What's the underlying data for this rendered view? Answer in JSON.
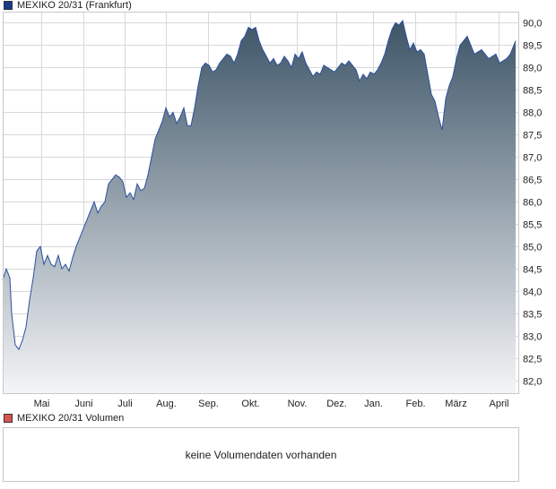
{
  "legend": {
    "price": "MEXIKO 20/31 (Frankfurt)",
    "price_color": "#1a3a8a",
    "volume": "MEXIKO 20/31 Volumen",
    "volume_color": "#d9534f"
  },
  "volume": {
    "message": "keine Volumendaten vorhanden"
  },
  "colors": {
    "line": "#2a4fa0",
    "fill_top": "#3d5567",
    "fill_bottom": "#f4f5f7",
    "grid": "#d8d8d8",
    "axis_text": "#222222"
  },
  "chart_data": {
    "type": "area",
    "series": [
      {
        "name": "MEXIKO 20/31 (Frankfurt)",
        "x": [
          0,
          4,
          8,
          10,
          14,
          18,
          22,
          26,
          30,
          34,
          38,
          42,
          46,
          50,
          54,
          58,
          62,
          66,
          70,
          74,
          78,
          82,
          86,
          90,
          94,
          98,
          102,
          106,
          110,
          114,
          118,
          122,
          126,
          130,
          134,
          138,
          142,
          146,
          150,
          154,
          158,
          162,
          166,
          170,
          174,
          178,
          182,
          186,
          190,
          194,
          198,
          202,
          206,
          210,
          214,
          218,
          222,
          226,
          230,
          234,
          238,
          242,
          246,
          250,
          254,
          258,
          262,
          266,
          270,
          274,
          278,
          282,
          286,
          290,
          294,
          298,
          302,
          306,
          310,
          314,
          318,
          322,
          326,
          330,
          334,
          338,
          342,
          346,
          350,
          354,
          358,
          362,
          366,
          370,
          374,
          378,
          382,
          386,
          390,
          394,
          398,
          402,
          406,
          410,
          414,
          418,
          422,
          426,
          430,
          434,
          438,
          442,
          446,
          450,
          454,
          458,
          462,
          466,
          470,
          474,
          478,
          482,
          486,
          490,
          494,
          498,
          502,
          506,
          510,
          514,
          518,
          522,
          526,
          530,
          534,
          538,
          542,
          546,
          550,
          554,
          558,
          562,
          566,
          570,
          572
        ],
        "values": [
          84.25,
          84.5,
          84.3,
          83.5,
          82.8,
          82.7,
          82.9,
          83.2,
          83.8,
          84.3,
          84.9,
          85.0,
          84.6,
          84.8,
          84.6,
          84.55,
          84.8,
          84.5,
          84.6,
          84.45,
          84.75,
          85.0,
          85.2,
          85.4,
          85.6,
          85.8,
          86.0,
          85.75,
          85.9,
          86.0,
          86.4,
          86.5,
          86.6,
          86.55,
          86.45,
          86.1,
          86.2,
          86.05,
          86.4,
          86.25,
          86.3,
          86.6,
          87.0,
          87.4,
          87.6,
          87.8,
          88.1,
          87.9,
          88.0,
          87.75,
          87.9,
          88.1,
          87.7,
          87.7,
          88.1,
          88.6,
          89.0,
          89.1,
          89.05,
          88.9,
          88.95,
          89.1,
          89.2,
          89.3,
          89.25,
          89.1,
          89.3,
          89.6,
          89.7,
          89.9,
          89.85,
          89.9,
          89.6,
          89.4,
          89.25,
          89.1,
          89.2,
          89.05,
          89.1,
          89.25,
          89.15,
          89.0,
          89.3,
          89.2,
          89.35,
          89.1,
          88.95,
          88.8,
          88.9,
          88.85,
          89.05,
          89.0,
          88.95,
          88.9,
          89.0,
          89.1,
          89.05,
          89.15,
          89.05,
          88.95,
          88.7,
          88.85,
          88.75,
          88.9,
          88.85,
          88.95,
          89.1,
          89.3,
          89.6,
          89.85,
          90.0,
          89.95,
          90.05,
          89.7,
          89.4,
          89.55,
          89.35,
          89.4,
          89.3,
          88.85,
          88.4,
          88.25,
          87.9,
          87.6,
          88.3,
          88.6,
          88.8,
          89.2,
          89.5,
          89.6,
          89.7,
          89.5,
          89.3,
          89.35,
          89.4,
          89.3,
          89.2,
          89.25,
          89.3,
          89.1,
          89.15,
          89.2,
          89.3,
          89.5,
          89.6
        ]
      }
    ],
    "x_ticks": [
      {
        "label": "Mai",
        "pos": 43
      },
      {
        "label": "Juni",
        "pos": 90
      },
      {
        "label": "Juli",
        "pos": 136
      },
      {
        "label": "Aug.",
        "pos": 182
      },
      {
        "label": "Sep.",
        "pos": 229
      },
      {
        "label": "Okt.",
        "pos": 276
      },
      {
        "label": "Nov.",
        "pos": 328
      },
      {
        "label": "Dez.",
        "pos": 372
      },
      {
        "label": "Jan.",
        "pos": 413
      },
      {
        "label": "Feb.",
        "pos": 460
      },
      {
        "label": "März",
        "pos": 505
      },
      {
        "label": "April",
        "pos": 553
      }
    ],
    "y_ticks": [
      "82,0",
      "82,5",
      "83,0",
      "83,5",
      "84,0",
      "84,5",
      "85,0",
      "85,5",
      "86,0",
      "86,5",
      "87,0",
      "87,5",
      "88,0",
      "88,5",
      "89,0",
      "89,5",
      "90,0"
    ],
    "xlim": [
      0,
      576
    ],
    "ylim": [
      81.7,
      90.25
    ],
    "grid": true,
    "legend": "top-left"
  }
}
